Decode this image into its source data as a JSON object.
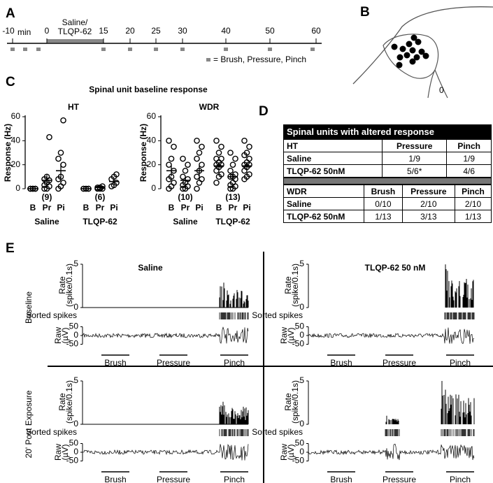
{
  "panel_labels": [
    "A",
    "B",
    "C",
    "D",
    "E"
  ],
  "timeline": {
    "ticks": [
      -10,
      0,
      15,
      20,
      25,
      30,
      40,
      50,
      60
    ],
    "unit": "min",
    "treatment_line1": "Saline/",
    "treatment_line2": "TLQP-62",
    "legend": "= Brush, Pressure, Pinch"
  },
  "diagram_b": {
    "label": "0"
  },
  "section_c_title": "Spinal unit baseline response",
  "chart_data": [
    {
      "type": "dot",
      "title": "HT",
      "y_label": "Response (Hz)",
      "ylim": [
        0,
        60
      ],
      "yticks": [
        0,
        20,
        40,
        60
      ],
      "categories": [
        "B",
        "Pr",
        "Pi",
        "B",
        "Pr",
        "Pi"
      ],
      "groups": [
        "Saline",
        "TLQP-62"
      ],
      "n_labels": [
        "(9)",
        "(6)"
      ],
      "points": [
        [
          0,
          0,
          0,
          0,
          0,
          0,
          0,
          0,
          0
        ],
        [
          0,
          0,
          2,
          3,
          5,
          7,
          8,
          10,
          43
        ],
        [
          0,
          2,
          5,
          8,
          10,
          20,
          25,
          30,
          57
        ],
        [
          0,
          0,
          0,
          0,
          0,
          0
        ],
        [
          0,
          0,
          0,
          1,
          1,
          2
        ],
        [
          2,
          3,
          5,
          8,
          10,
          12
        ]
      ],
      "means": [
        0,
        7,
        15,
        0,
        1,
        6
      ],
      "errors": [
        0,
        4.5,
        6,
        0,
        0.5,
        1.5
      ]
    },
    {
      "type": "dot",
      "title": "WDR",
      "y_label": "Response (Hz)",
      "ylim": [
        0,
        60
      ],
      "yticks": [
        0,
        20,
        40,
        60
      ],
      "categories": [
        "B",
        "Pr",
        "Pi",
        "B",
        "Pr",
        "Pi"
      ],
      "groups": [
        "Saline",
        "TLQP-62"
      ],
      "n_labels": [
        "(10)",
        "(13)"
      ],
      "points": [
        [
          0,
          2,
          5,
          8,
          10,
          15,
          20,
          25,
          35,
          40
        ],
        [
          0,
          0,
          2,
          3,
          5,
          8,
          10,
          15,
          20,
          25
        ],
        [
          0,
          5,
          8,
          10,
          15,
          20,
          25,
          30,
          35,
          40
        ],
        [
          5,
          10,
          12,
          15,
          18,
          20,
          20,
          22,
          25,
          25,
          30,
          35,
          40
        ],
        [
          0,
          0,
          2,
          3,
          5,
          8,
          10,
          10,
          12,
          15,
          20,
          25,
          30
        ],
        [
          8,
          10,
          12,
          15,
          18,
          20,
          20,
          22,
          25,
          28,
          30,
          35,
          40
        ]
      ],
      "means": [
        15,
        7,
        15,
        19,
        10,
        19
      ],
      "errors": [
        4.5,
        2.5,
        4.5,
        3,
        2.5,
        3
      ]
    }
  ],
  "table": {
    "title": "Spinal units with altered response",
    "ht_header": [
      "HT",
      "Pressure",
      "Pinch"
    ],
    "ht_rows": [
      [
        "Saline",
        "1/9",
        "1/9"
      ],
      [
        "TLQP-62 50nM",
        "5/6*",
        "4/6"
      ]
    ],
    "wdr_header": [
      "WDR",
      "Brush",
      "Pressure",
      "Pinch"
    ],
    "wdr_rows": [
      [
        "Saline",
        "0/10",
        "2/10",
        "2/10"
      ],
      [
        "TLQP-62 50nM",
        "1/13",
        "3/13",
        "1/13"
      ]
    ]
  },
  "panel_e": {
    "columns": [
      "Saline",
      "TLQP-62 50 nM"
    ],
    "rows": [
      "Baseline",
      "20' Post Exposure"
    ],
    "rate_label_1": "Rate",
    "rate_label_2": "(spike/0.1s)",
    "rate_ylim": [
      0,
      5
    ],
    "rate_yticks": [
      0,
      5
    ],
    "sorted_label": "Sorted spikes",
    "raw_label_1": "Raw",
    "raw_label_2": "(µV)",
    "raw_ylim": [
      -50,
      50
    ],
    "raw_yticks": [
      50,
      0,
      -50
    ],
    "stimuli": [
      "Brush",
      "Pressure",
      "Pinch"
    ]
  }
}
